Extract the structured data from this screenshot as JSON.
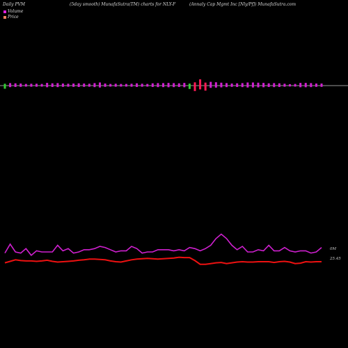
{
  "header": {
    "left": "Daily PVM",
    "mid": "(5day smooth) MunafaSutra(TM) charts for NLY-F",
    "right": "(Annaly Cap Mgmt Inc [Nly/Pf]) MunafaSutra.com"
  },
  "legend": {
    "volume_label": "Volume",
    "price_label": "Price",
    "volume_color": "#e020e0",
    "price_color": "#f08060"
  },
  "colors": {
    "background": "#000000",
    "volume_line": "#d020d0",
    "price_line": "#ee1111",
    "baseline": "#cccccc",
    "down_bar": "#33cc33",
    "spike_bar": "#ff1a55"
  },
  "chart_data": {
    "type": "bar",
    "x": [
      1,
      2,
      3,
      4,
      5,
      6,
      7,
      8,
      9,
      10,
      11,
      12,
      13,
      14,
      15,
      16,
      17,
      18,
      19,
      20,
      21,
      22,
      23,
      24,
      25,
      26,
      27,
      28,
      29,
      30,
      31,
      32,
      33,
      34,
      35,
      36,
      37,
      38,
      39,
      40,
      41,
      42,
      43,
      44,
      45,
      46,
      47,
      48,
      49,
      50,
      51,
      52,
      53,
      54,
      55,
      56,
      57,
      58,
      59,
      60,
      61
    ],
    "series": [
      {
        "name": "Volume",
        "values": [
          1.5,
          1.2,
          1.1,
          1.0,
          0.8,
          0.9,
          0.9,
          0.8,
          1.3,
          1.1,
          1.2,
          1.0,
          0.9,
          1.0,
          1.1,
          1.0,
          0.9,
          1.2,
          1.5,
          1.0,
          0.8,
          0.9,
          0.8,
          0.8,
          0.9,
          1.1,
          0.9,
          0.8,
          1.1,
          1.2,
          1.2,
          1.3,
          1.2,
          1.1,
          1.3,
          1.6,
          2.6,
          3.0,
          2.4,
          1.8,
          1.6,
          1.4,
          1.2,
          1.0,
          1.1,
          1.2,
          1.5,
          1.5,
          1.4,
          1.3,
          1.1,
          1.2,
          1.1,
          0.9,
          0.7,
          0.8,
          1.3,
          1.3,
          1.2,
          1.0,
          1.0
        ],
        "direction": [
          "down",
          "up",
          "up",
          "up",
          "up",
          "up",
          "up",
          "up",
          "up",
          "up",
          "up",
          "up",
          "up",
          "up",
          "up",
          "up",
          "up",
          "up",
          "up",
          "up",
          "up",
          "up",
          "up",
          "up",
          "up",
          "up",
          "up",
          "up",
          "up",
          "up",
          "up",
          "up",
          "up",
          "up",
          "up",
          "down",
          "down",
          "up",
          "down",
          "up",
          "up",
          "up",
          "up",
          "up",
          "up",
          "up",
          "up",
          "up",
          "up",
          "up",
          "up",
          "up",
          "up",
          "up",
          "up",
          "up",
          "up",
          "up",
          "up",
          "up",
          "up"
        ]
      },
      {
        "name": "Volume (smoothed)",
        "values": [
          0.9,
          1.7,
          1.0,
          0.9,
          1.3,
          0.7,
          1.1,
          1.0,
          1.0,
          1.0,
          1.6,
          1.1,
          1.3,
          0.9,
          1.0,
          1.2,
          1.2,
          1.3,
          1.5,
          1.4,
          1.2,
          1.0,
          1.1,
          1.1,
          1.5,
          1.3,
          0.9,
          1.0,
          1.0,
          1.2,
          1.2,
          1.2,
          1.1,
          1.2,
          1.1,
          1.4,
          1.3,
          1.1,
          1.3,
          1.6,
          2.2,
          2.6,
          2.2,
          1.6,
          1.2,
          1.5,
          1.0,
          1.0,
          1.2,
          1.1,
          1.6,
          1.1,
          1.1,
          1.4,
          1.1,
          1.0,
          1.1,
          1.1,
          0.9,
          1.0,
          1.4
        ]
      },
      {
        "name": "Price",
        "values": [
          25.42,
          25.46,
          25.5,
          25.48,
          25.47,
          25.47,
          25.46,
          25.47,
          25.49,
          25.46,
          25.44,
          25.45,
          25.46,
          25.47,
          25.49,
          25.5,
          25.52,
          25.52,
          25.51,
          25.5,
          25.47,
          25.45,
          25.44,
          25.47,
          25.5,
          25.52,
          25.53,
          25.54,
          25.53,
          25.52,
          25.53,
          25.54,
          25.55,
          25.57,
          25.56,
          25.56,
          25.48,
          25.38,
          25.38,
          25.4,
          25.42,
          25.43,
          25.4,
          25.42,
          25.44,
          25.45,
          25.44,
          25.44,
          25.45,
          25.45,
          25.45,
          25.43,
          25.45,
          25.46,
          25.44,
          25.4,
          25.41,
          25.45,
          25.44,
          25.45,
          25.45
        ]
      }
    ],
    "annotations": [
      "0M",
      "25.45"
    ]
  }
}
